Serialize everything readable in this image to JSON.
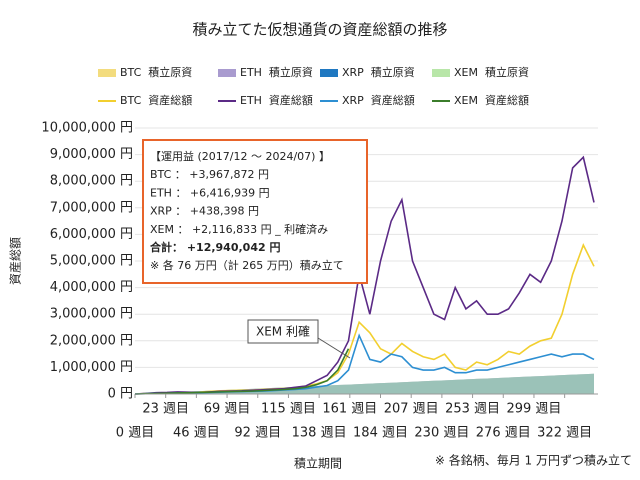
{
  "chart_data": {
    "type": "line",
    "title": "積み立てた仮想通貨の資産総額の推移",
    "x_label": "積立期間",
    "y_label": "資産総額",
    "footnote": "※ 各銘柄、毎月 1 万円ずつ積み立て",
    "x": [
      0,
      8,
      16,
      24,
      32,
      40,
      48,
      56,
      64,
      72,
      80,
      88,
      96,
      104,
      112,
      120,
      128,
      136,
      144,
      152,
      160,
      168,
      176,
      184,
      192,
      200,
      208,
      216,
      224,
      232,
      240,
      248,
      256,
      264,
      272,
      280,
      288,
      296,
      304,
      312,
      320,
      328,
      336,
      344
    ],
    "xlim": [
      0,
      347
    ],
    "ylim": [
      0,
      10000000
    ],
    "xticks": [
      {
        "value": 0,
        "label": "0 週目"
      },
      {
        "value": 23,
        "label": "23 週目"
      },
      {
        "value": 46,
        "label": "46 週目"
      },
      {
        "value": 69,
        "label": "69 週目"
      },
      {
        "value": 92,
        "label": "92 週目"
      },
      {
        "value": 115,
        "label": "115 週目"
      },
      {
        "value": 138,
        "label": "138 週目"
      },
      {
        "value": 161,
        "label": "161 週目"
      },
      {
        "value": 184,
        "label": "184 週目"
      },
      {
        "value": 207,
        "label": "207 週目"
      },
      {
        "value": 230,
        "label": "230 週目"
      },
      {
        "value": 253,
        "label": "253 週目"
      },
      {
        "value": 276,
        "label": "276 週目"
      },
      {
        "value": 299,
        "label": "299 週目"
      },
      {
        "value": 322,
        "label": "322 週目"
      }
    ],
    "yticks": [
      {
        "value": 0,
        "label": "0 円"
      },
      {
        "value": 1000000,
        "label": "1,000,000 円"
      },
      {
        "value": 2000000,
        "label": "2,000,000 円"
      },
      {
        "value": 3000000,
        "label": "3,000,000 円"
      },
      {
        "value": 4000000,
        "label": "4,000,000 円"
      },
      {
        "value": 5000000,
        "label": "5,000,000 円"
      },
      {
        "value": 6000000,
        "label": "6,000,000 円"
      },
      {
        "value": 7000000,
        "label": "7,000,000 円"
      },
      {
        "value": 8000000,
        "label": "8,000,000 円"
      },
      {
        "value": 9000000,
        "label": "9,000,000 円"
      },
      {
        "value": 10000000,
        "label": "10,000,000 円"
      }
    ],
    "grid": true,
    "series": [
      {
        "name": "BTC  積立原資",
        "style": "area",
        "color": "#f3dc7e",
        "values": [
          0,
          18000,
          35000,
          53000,
          71000,
          89000,
          106000,
          124000,
          142000,
          159000,
          177000,
          195000,
          213000,
          230000,
          248000,
          266000,
          284000,
          301000,
          319000,
          337000,
          354000,
          372000,
          390000,
          408000,
          425000,
          443000,
          461000,
          478000,
          496000,
          514000,
          532000,
          549000,
          567000,
          585000,
          602000,
          620000,
          638000,
          656000,
          673000,
          691000,
          709000,
          727000,
          744000,
          762000
        ]
      },
      {
        "name": "ETH  積立原資",
        "style": "area",
        "color": "#a99bcf",
        "values": [
          0,
          18000,
          35000,
          53000,
          71000,
          89000,
          106000,
          124000,
          142000,
          159000,
          177000,
          195000,
          213000,
          230000,
          248000,
          266000,
          284000,
          301000,
          319000,
          337000,
          354000,
          372000,
          390000,
          408000,
          425000,
          443000,
          461000,
          478000,
          496000,
          514000,
          532000,
          549000,
          567000,
          585000,
          602000,
          620000,
          638000,
          656000,
          673000,
          691000,
          709000,
          727000,
          744000,
          762000
        ]
      },
      {
        "name": "XRP  積立原資",
        "style": "area",
        "color": "#1f78c1",
        "values": [
          0,
          18000,
          35000,
          53000,
          71000,
          89000,
          106000,
          124000,
          142000,
          159000,
          177000,
          195000,
          213000,
          230000,
          248000,
          266000,
          284000,
          301000,
          319000,
          337000,
          354000,
          372000,
          390000,
          408000,
          425000,
          443000,
          461000,
          478000,
          496000,
          514000,
          532000,
          549000,
          567000,
          585000,
          602000,
          620000,
          638000,
          656000,
          673000,
          691000,
          709000,
          727000,
          744000,
          762000
        ]
      },
      {
        "name": "XEM  積立原資",
        "style": "area",
        "color": "#b8e6a8",
        "values": [
          0,
          18000,
          35000,
          53000,
          71000,
          89000,
          106000,
          124000,
          142000,
          159000,
          177000,
          195000,
          213000,
          230000,
          248000,
          266000,
          284000,
          301000,
          319000,
          337000,
          354000,
          372000,
          390000,
          408000,
          425000,
          443000,
          461000,
          478000,
          496000,
          514000,
          532000,
          549000,
          567000,
          585000,
          602000,
          620000,
          638000,
          656000,
          673000,
          691000,
          709000,
          727000,
          744000,
          762000
        ]
      },
      {
        "name": "BTC  資産総額",
        "style": "line",
        "color": "#f2cf2f",
        "values": [
          0,
          15000,
          25000,
          35000,
          50000,
          60000,
          70000,
          95000,
          120000,
          130000,
          140000,
          150000,
          170000,
          190000,
          210000,
          240000,
          300000,
          380000,
          500000,
          800000,
          1500000,
          2700000,
          2300000,
          1700000,
          1500000,
          1900000,
          1600000,
          1400000,
          1300000,
          1500000,
          1000000,
          900000,
          1200000,
          1100000,
          1300000,
          1600000,
          1500000,
          1800000,
          2000000,
          2100000,
          3000000,
          4500000,
          5600000,
          4800000
        ]
      },
      {
        "name": "ETH  資産総額",
        "style": "line",
        "color": "#5b2a86",
        "values": [
          0,
          20000,
          50000,
          60000,
          80000,
          70000,
          60000,
          80000,
          100000,
          110000,
          120000,
          140000,
          160000,
          180000,
          200000,
          250000,
          300000,
          500000,
          700000,
          1200000,
          2000000,
          4500000,
          3000000,
          5000000,
          6500000,
          7300000,
          5000000,
          4000000,
          3000000,
          2800000,
          4000000,
          3200000,
          3500000,
          3000000,
          3000000,
          3200000,
          3800000,
          4500000,
          4200000,
          5000000,
          6500000,
          8500000,
          8900000,
          7200000
        ]
      },
      {
        "name": "XRP  資産総額",
        "style": "line",
        "color": "#2d8fd2",
        "values": [
          0,
          10000,
          20000,
          25000,
          35000,
          40000,
          50000,
          60000,
          70000,
          80000,
          90000,
          100000,
          110000,
          130000,
          150000,
          170000,
          200000,
          260000,
          320000,
          500000,
          900000,
          2200000,
          1300000,
          1200000,
          1500000,
          1400000,
          1000000,
          900000,
          900000,
          1000000,
          800000,
          800000,
          900000,
          900000,
          1000000,
          1100000,
          1200000,
          1300000,
          1400000,
          1500000,
          1400000,
          1500000,
          1500000,
          1300000
        ]
      },
      {
        "name": "XEM  資産総額",
        "style": "line",
        "color": "#3b7d2b",
        "values": [
          0,
          10000,
          20000,
          30000,
          40000,
          50000,
          60000,
          70000,
          80000,
          90000,
          100000,
          110000,
          130000,
          150000,
          170000,
          200000,
          250000,
          350000,
          500000,
          900000,
          1700000,
          null,
          null,
          null,
          null,
          null,
          null,
          null,
          null,
          null,
          null,
          null,
          null,
          null,
          null,
          null,
          null,
          null,
          null,
          null,
          null,
          null,
          null,
          null
        ]
      }
    ],
    "annotation": {
      "lines": [
        "【運用益 (2017/12 ～ 2024/07) 】",
        "BTC ： +3,967,872 円",
        "ETH ： +6,416,939 円",
        "XRP ： +438,398 円",
        "XEM ： +2,116,833 円 _ 利確済み",
        "合計： +12,940,042 円",
        "※ 各 76 万円（計 265 万円）積み立て"
      ]
    },
    "callout": "XEM 利確"
  }
}
